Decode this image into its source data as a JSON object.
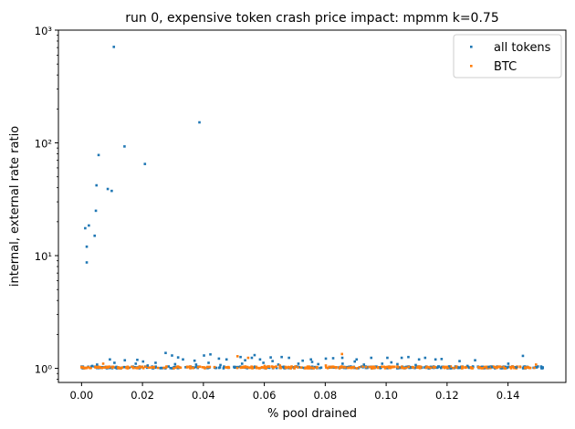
{
  "chart_data": {
    "type": "scatter",
    "title": "run 0, expensive token crash price impact: mpmm k=0.75",
    "xlabel": "% pool drained",
    "ylabel": "internal, external rate ratio",
    "xlim": [
      -0.0076,
      0.159
    ],
    "ylim": [
      0.75,
      1000
    ],
    "y_scale": "log",
    "x_ticks": [
      "0.00",
      "0.02",
      "0.04",
      "0.06",
      "0.08",
      "0.10",
      "0.12",
      "0.14"
    ],
    "x_tick_values": [
      0,
      0.02,
      0.04,
      0.06,
      0.08,
      0.1,
      0.12,
      0.14
    ],
    "y_major_ticks": [
      1,
      10,
      100,
      1000
    ],
    "y_tick_labels": [
      "10⁰",
      "10¹",
      "10²",
      "10³"
    ],
    "grid": false,
    "legend_position": "top-right",
    "series": [
      {
        "name": "all tokens",
        "color": "#1f77b4",
        "points": [
          [
            0.0106,
            710
          ],
          [
            0.0387,
            152
          ],
          [
            0.0141,
            93
          ],
          [
            0.0056,
            78
          ],
          [
            0.0208,
            65
          ],
          [
            0.0049,
            42
          ],
          [
            0.0086,
            39
          ],
          [
            0.0099,
            37.5
          ],
          [
            0.0047,
            25
          ],
          [
            0.0024,
            18.5
          ],
          [
            0.0012,
            17.5
          ],
          [
            0.0043,
            15
          ],
          [
            0.0017,
            12
          ],
          [
            0.0017,
            8.7
          ],
          [
            0.0035,
            1.05
          ],
          [
            0.0051,
            1.08
          ],
          [
            0.0093,
            1.2
          ],
          [
            0.0108,
            1.12
          ],
          [
            0.0142,
            1.18
          ],
          [
            0.0178,
            1.1
          ],
          [
            0.0183,
            1.19
          ],
          [
            0.0202,
            1.15
          ],
          [
            0.0243,
            1.12
          ],
          [
            0.0276,
            1.37
          ],
          [
            0.0297,
            1.3
          ],
          [
            0.0317,
            1.25
          ],
          [
            0.0333,
            1.2
          ],
          [
            0.0371,
            1.17
          ],
          [
            0.0402,
            1.3
          ],
          [
            0.0423,
            1.33
          ],
          [
            0.0451,
            1.22
          ],
          [
            0.0476,
            1.2
          ],
          [
            0.0522,
            1.26
          ],
          [
            0.0559,
            1.24
          ],
          [
            0.0568,
            1.31
          ],
          [
            0.0586,
            1.2
          ],
          [
            0.0621,
            1.25
          ],
          [
            0.0657,
            1.26
          ],
          [
            0.0681,
            1.24
          ],
          [
            0.0726,
            1.17
          ],
          [
            0.0753,
            1.2
          ],
          [
            0.0802,
            1.22
          ],
          [
            0.0826,
            1.23
          ],
          [
            0.0856,
            1.24
          ],
          [
            0.0903,
            1.2
          ],
          [
            0.0951,
            1.24
          ],
          [
            0.1004,
            1.24
          ],
          [
            0.1051,
            1.24
          ],
          [
            0.1073,
            1.26
          ],
          [
            0.1108,
            1.2
          ],
          [
            0.1128,
            1.24
          ],
          [
            0.1162,
            1.2
          ],
          [
            0.1182,
            1.21
          ],
          [
            0.1241,
            1.16
          ],
          [
            0.1292,
            1.18
          ],
          [
            0.1337,
            1.03
          ],
          [
            0.1401,
            1.1
          ],
          [
            0.1449,
            1.29
          ],
          [
            0.1512,
            1.01
          ],
          [
            0.0307,
            1.09
          ],
          [
            0.0376,
            1.08
          ],
          [
            0.0456,
            1.07
          ],
          [
            0.0527,
            1.1
          ],
          [
            0.0597,
            1.12
          ],
          [
            0.0646,
            1.08
          ],
          [
            0.0712,
            1.1
          ],
          [
            0.0777,
            1.09
          ],
          [
            0.0857,
            1.1
          ],
          [
            0.0927,
            1.08
          ],
          [
            0.0987,
            1.1
          ],
          [
            0.1037,
            1.09
          ],
          [
            0.1097,
            1.07
          ],
          [
            0.1207,
            1.04
          ],
          [
            0.1267,
            1.05
          ],
          [
            0.1347,
            1.03
          ],
          [
            0.1427,
            1.02
          ],
          [
            0.0627,
            1.16
          ],
          [
            0.0757,
            1.14
          ],
          [
            0.0897,
            1.15
          ],
          [
            0.1017,
            1.13
          ],
          [
            0.0537,
            1.18
          ],
          [
            0.0417,
            1.12
          ],
          [
            0.0217,
            1.06
          ]
        ]
      },
      {
        "name": "BTC",
        "color": "#ff7f0e",
        "points": [
          [
            0.0512,
            1.28
          ],
          [
            0.0547,
            1.24
          ],
          [
            0.0855,
            1.34
          ],
          [
            0.0601,
            1.05
          ],
          [
            0.0702,
            1.04
          ],
          [
            0.0802,
            1.06
          ],
          [
            0.0421,
            1.03
          ],
          [
            0.0321,
            1.02
          ],
          [
            0.0951,
            1.03
          ],
          [
            0.1051,
            1.02
          ],
          [
            0.1492,
            1.08
          ],
          [
            0.1261,
            1.02
          ],
          [
            0.1201,
            1.01
          ],
          [
            0.0151,
            1.02
          ],
          [
            0.0087,
            1.03
          ],
          [
            0.0071,
            1.1
          ],
          [
            0.0251,
            1.01
          ],
          [
            0.0651,
            1.06
          ],
          [
            0.0751,
            1.02
          ],
          [
            0.1131,
            1.01
          ]
        ]
      }
    ]
  }
}
